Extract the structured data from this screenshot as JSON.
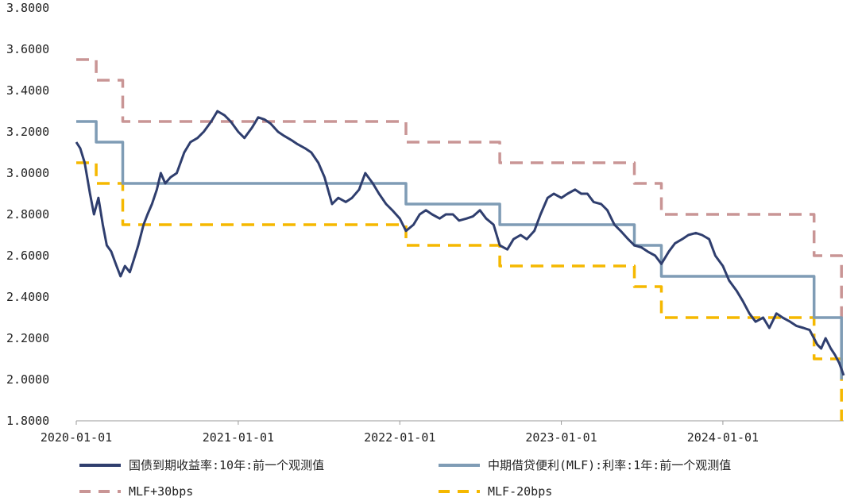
{
  "chart_data": {
    "type": "line",
    "title": "",
    "xlabel": "",
    "ylabel": "",
    "ylim": [
      1.8,
      3.8
    ],
    "xlim": [
      "2020-01-01",
      "2024-09-30"
    ],
    "y_ticks": [
      "1.8000",
      "2.0000",
      "2.2000",
      "2.4000",
      "2.6000",
      "2.8000",
      "3.0000",
      "3.2000",
      "3.4000",
      "3.6000",
      "3.8000"
    ],
    "x_ticks": [
      "2020-01-01",
      "2021-01-01",
      "2022-01-01",
      "2023-01-01",
      "2024-01-01"
    ],
    "grid": false,
    "legend_position": "bottom",
    "series": [
      {
        "name": "国债到期收益率:10年:前一个观测值",
        "color": "#2f3e6e",
        "style": "solid",
        "points": [
          [
            "2020-01-01",
            3.15
          ],
          [
            "2020-01-10",
            3.12
          ],
          [
            "2020-01-20",
            3.05
          ],
          [
            "2020-02-01",
            2.9
          ],
          [
            "2020-02-10",
            2.8
          ],
          [
            "2020-02-20",
            2.88
          ],
          [
            "2020-03-01",
            2.75
          ],
          [
            "2020-03-10",
            2.65
          ],
          [
            "2020-03-20",
            2.62
          ],
          [
            "2020-04-01",
            2.55
          ],
          [
            "2020-04-10",
            2.5
          ],
          [
            "2020-04-20",
            2.55
          ],
          [
            "2020-05-01",
            2.52
          ],
          [
            "2020-05-10",
            2.58
          ],
          [
            "2020-05-20",
            2.65
          ],
          [
            "2020-06-01",
            2.75
          ],
          [
            "2020-06-10",
            2.8
          ],
          [
            "2020-06-20",
            2.85
          ],
          [
            "2020-07-01",
            2.92
          ],
          [
            "2020-07-10",
            3.0
          ],
          [
            "2020-07-20",
            2.95
          ],
          [
            "2020-08-01",
            2.98
          ],
          [
            "2020-08-15",
            3.0
          ],
          [
            "2020-09-01",
            3.1
          ],
          [
            "2020-09-15",
            3.15
          ],
          [
            "2020-10-01",
            3.17
          ],
          [
            "2020-10-15",
            3.2
          ],
          [
            "2020-11-01",
            3.25
          ],
          [
            "2020-11-15",
            3.3
          ],
          [
            "2020-12-01",
            3.28
          ],
          [
            "2020-12-15",
            3.25
          ],
          [
            "2021-01-01",
            3.2
          ],
          [
            "2021-01-15",
            3.17
          ],
          [
            "2021-02-01",
            3.22
          ],
          [
            "2021-02-15",
            3.27
          ],
          [
            "2021-03-01",
            3.26
          ],
          [
            "2021-03-15",
            3.24
          ],
          [
            "2021-04-01",
            3.2
          ],
          [
            "2021-04-15",
            3.18
          ],
          [
            "2021-05-01",
            3.16
          ],
          [
            "2021-05-15",
            3.14
          ],
          [
            "2021-06-01",
            3.12
          ],
          [
            "2021-06-15",
            3.1
          ],
          [
            "2021-07-01",
            3.05
          ],
          [
            "2021-07-15",
            2.98
          ],
          [
            "2021-08-01",
            2.85
          ],
          [
            "2021-08-15",
            2.88
          ],
          [
            "2021-09-01",
            2.86
          ],
          [
            "2021-09-15",
            2.88
          ],
          [
            "2021-10-01",
            2.92
          ],
          [
            "2021-10-15",
            3.0
          ],
          [
            "2021-11-01",
            2.95
          ],
          [
            "2021-11-15",
            2.9
          ],
          [
            "2021-12-01",
            2.85
          ],
          [
            "2021-12-15",
            2.82
          ],
          [
            "2022-01-01",
            2.78
          ],
          [
            "2022-01-15",
            2.72
          ],
          [
            "2022-02-01",
            2.75
          ],
          [
            "2022-02-15",
            2.8
          ],
          [
            "2022-03-01",
            2.82
          ],
          [
            "2022-03-15",
            2.8
          ],
          [
            "2022-04-01",
            2.78
          ],
          [
            "2022-04-15",
            2.8
          ],
          [
            "2022-05-01",
            2.8
          ],
          [
            "2022-05-15",
            2.77
          ],
          [
            "2022-06-01",
            2.78
          ],
          [
            "2022-06-15",
            2.79
          ],
          [
            "2022-07-01",
            2.82
          ],
          [
            "2022-07-15",
            2.78
          ],
          [
            "2022-08-01",
            2.75
          ],
          [
            "2022-08-15",
            2.65
          ],
          [
            "2022-09-01",
            2.63
          ],
          [
            "2022-09-15",
            2.68
          ],
          [
            "2022-10-01",
            2.7
          ],
          [
            "2022-10-15",
            2.68
          ],
          [
            "2022-11-01",
            2.72
          ],
          [
            "2022-11-15",
            2.8
          ],
          [
            "2022-12-01",
            2.88
          ],
          [
            "2022-12-15",
            2.9
          ],
          [
            "2023-01-01",
            2.88
          ],
          [
            "2023-01-15",
            2.9
          ],
          [
            "2023-02-01",
            2.92
          ],
          [
            "2023-02-15",
            2.9
          ],
          [
            "2023-03-01",
            2.9
          ],
          [
            "2023-03-15",
            2.86
          ],
          [
            "2023-04-01",
            2.85
          ],
          [
            "2023-04-15",
            2.82
          ],
          [
            "2023-05-01",
            2.75
          ],
          [
            "2023-05-15",
            2.72
          ],
          [
            "2023-06-01",
            2.68
          ],
          [
            "2023-06-15",
            2.65
          ],
          [
            "2023-07-01",
            2.64
          ],
          [
            "2023-07-15",
            2.62
          ],
          [
            "2023-08-01",
            2.6
          ],
          [
            "2023-08-15",
            2.56
          ],
          [
            "2023-09-01",
            2.62
          ],
          [
            "2023-09-15",
            2.66
          ],
          [
            "2023-10-01",
            2.68
          ],
          [
            "2023-10-15",
            2.7
          ],
          [
            "2023-11-01",
            2.71
          ],
          [
            "2023-11-15",
            2.7
          ],
          [
            "2023-12-01",
            2.68
          ],
          [
            "2023-12-15",
            2.6
          ],
          [
            "2024-01-01",
            2.55
          ],
          [
            "2024-01-15",
            2.48
          ],
          [
            "2024-02-01",
            2.43
          ],
          [
            "2024-02-15",
            2.38
          ],
          [
            "2024-03-01",
            2.32
          ],
          [
            "2024-03-15",
            2.28
          ],
          [
            "2024-04-01",
            2.3
          ],
          [
            "2024-04-15",
            2.25
          ],
          [
            "2024-05-01",
            2.32
          ],
          [
            "2024-05-15",
            2.3
          ],
          [
            "2024-06-01",
            2.28
          ],
          [
            "2024-06-15",
            2.26
          ],
          [
            "2024-07-01",
            2.25
          ],
          [
            "2024-07-15",
            2.24
          ],
          [
            "2024-08-01",
            2.17
          ],
          [
            "2024-08-10",
            2.15
          ],
          [
            "2024-08-20",
            2.2
          ],
          [
            "2024-09-01",
            2.15
          ],
          [
            "2024-09-10",
            2.12
          ],
          [
            "2024-09-20",
            2.08
          ],
          [
            "2024-09-30",
            2.02
          ]
        ]
      },
      {
        "name": "中期借贷便利(MLF):利率:1年:前一个观测值",
        "color": "#7f9cb5",
        "style": "step",
        "points": [
          [
            "2020-01-01",
            3.25
          ],
          [
            "2020-02-15",
            3.25
          ],
          [
            "2020-02-15",
            3.15
          ],
          [
            "2020-04-15",
            3.15
          ],
          [
            "2020-04-15",
            2.95
          ],
          [
            "2022-01-15",
            2.95
          ],
          [
            "2022-01-15",
            2.85
          ],
          [
            "2022-08-15",
            2.85
          ],
          [
            "2022-08-15",
            2.75
          ],
          [
            "2023-06-15",
            2.75
          ],
          [
            "2023-06-15",
            2.65
          ],
          [
            "2023-08-15",
            2.65
          ],
          [
            "2023-08-15",
            2.5
          ],
          [
            "2024-07-25",
            2.5
          ],
          [
            "2024-07-25",
            2.3
          ],
          [
            "2024-09-25",
            2.3
          ],
          [
            "2024-09-25",
            2.0
          ]
        ]
      },
      {
        "name": "MLF+30bps",
        "color": "#c99595",
        "style": "dashed-step",
        "points": [
          [
            "2020-01-01",
            3.55
          ],
          [
            "2020-02-15",
            3.55
          ],
          [
            "2020-02-15",
            3.45
          ],
          [
            "2020-04-15",
            3.45
          ],
          [
            "2020-04-15",
            3.25
          ],
          [
            "2022-01-15",
            3.25
          ],
          [
            "2022-01-15",
            3.15
          ],
          [
            "2022-08-15",
            3.15
          ],
          [
            "2022-08-15",
            3.05
          ],
          [
            "2023-06-15",
            3.05
          ],
          [
            "2023-06-15",
            2.95
          ],
          [
            "2023-08-15",
            2.95
          ],
          [
            "2023-08-15",
            2.8
          ],
          [
            "2024-07-25",
            2.8
          ],
          [
            "2024-07-25",
            2.6
          ],
          [
            "2024-09-25",
            2.6
          ],
          [
            "2024-09-25",
            2.3
          ]
        ]
      },
      {
        "name": "MLF-20bps",
        "color": "#f5b800",
        "style": "dashed-step",
        "points": [
          [
            "2020-01-01",
            3.05
          ],
          [
            "2020-02-15",
            3.05
          ],
          [
            "2020-02-15",
            2.95
          ],
          [
            "2020-04-15",
            2.95
          ],
          [
            "2020-04-15",
            2.75
          ],
          [
            "2022-01-15",
            2.75
          ],
          [
            "2022-01-15",
            2.65
          ],
          [
            "2022-08-15",
            2.65
          ],
          [
            "2022-08-15",
            2.55
          ],
          [
            "2023-06-15",
            2.55
          ],
          [
            "2023-06-15",
            2.45
          ],
          [
            "2023-08-15",
            2.45
          ],
          [
            "2023-08-15",
            2.3
          ],
          [
            "2024-07-25",
            2.3
          ],
          [
            "2024-07-25",
            2.1
          ],
          [
            "2024-09-25",
            2.1
          ],
          [
            "2024-09-25",
            1.8
          ]
        ]
      }
    ]
  }
}
